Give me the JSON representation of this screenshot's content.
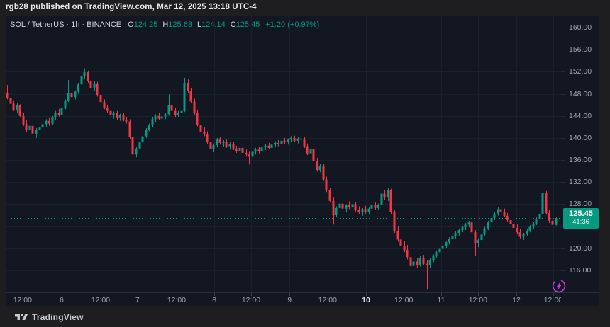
{
  "top_bar": {
    "text": "rgb28 published on TradingView.com, Mar 12, 2025 13:18 UTC-4"
  },
  "legend": {
    "series": "SOL / TetherUS · 1h · BINANCE",
    "ohlc": [
      {
        "label": "O",
        "value": "124.25"
      },
      {
        "label": "H",
        "value": "125.63"
      },
      {
        "label": "L",
        "value": "124.14"
      },
      {
        "label": "C",
        "value": "125.45"
      }
    ],
    "change": "+1.20 (+0.97%)"
  },
  "footer": {
    "brand": "TradingView"
  },
  "boost_icon": "lightning-circle",
  "chart_data": {
    "type": "candlestick",
    "symbol": "SOL/USDT",
    "exchange": "BINANCE",
    "interval": "1h",
    "colors": {
      "up": "#089981",
      "down": "#f23645",
      "grid": "#1b2030",
      "axis_text": "#a0a3ad",
      "bold_text": "#d8dadf",
      "border": "#2a2e39",
      "tag_bg": "#089981",
      "boost": "#c83cd0",
      "background": "#131722"
    },
    "price_axis": {
      "labels": [
        {
          "value": 160,
          "label": "160.00"
        },
        {
          "value": 156,
          "label": "156.00"
        },
        {
          "value": 152,
          "label": "152.00"
        },
        {
          "value": 148,
          "label": "148.00"
        },
        {
          "value": 144,
          "label": "144.00"
        },
        {
          "value": 140,
          "label": "140.00"
        },
        {
          "value": 136,
          "label": "136.00"
        },
        {
          "value": 132,
          "label": "132.00"
        },
        {
          "value": 128,
          "label": "128.00"
        },
        {
          "value": 120,
          "label": "120.00"
        },
        {
          "value": 116,
          "label": "116.00"
        }
      ],
      "grid": [
        160,
        156,
        152,
        148,
        144,
        140,
        136,
        132,
        128,
        124,
        120,
        116
      ],
      "range": [
        112,
        161
      ]
    },
    "time_axis": {
      "ticks": [
        {
          "i": 4.8,
          "label": "12:00",
          "bold": false
        },
        {
          "i": 16.9,
          "label": "6",
          "bold": false
        },
        {
          "i": 29.0,
          "label": "12:00",
          "bold": false
        },
        {
          "i": 40.4,
          "label": "7",
          "bold": false
        },
        {
          "i": 52.5,
          "label": "12:00",
          "bold": false
        },
        {
          "i": 64.2,
          "label": "8",
          "bold": false
        },
        {
          "i": 75.6,
          "label": "12:00",
          "bold": false
        },
        {
          "i": 87.5,
          "label": "9",
          "bold": false
        },
        {
          "i": 99.3,
          "label": "12:00",
          "bold": false
        },
        {
          "i": 111.2,
          "label": "10",
          "bold": true
        },
        {
          "i": 122.9,
          "label": "12:00",
          "bold": false
        },
        {
          "i": 134.5,
          "label": "11",
          "bold": false
        },
        {
          "i": 145.9,
          "label": "12:00",
          "bold": false
        },
        {
          "i": 157.8,
          "label": "12",
          "bold": false
        },
        {
          "i": 169.2,
          "label": "12:00",
          "bold": false
        }
      ]
    },
    "last_price": {
      "value": 125.45,
      "label": "125.45",
      "countdown": "41:36"
    },
    "candles": [
      [
        148.2,
        149.6,
        147.0,
        147.3
      ],
      [
        147.3,
        148.0,
        146.0,
        146.2
      ],
      [
        146.2,
        146.8,
        144.9,
        145.1
      ],
      [
        145.1,
        146.3,
        144.5,
        145.9
      ],
      [
        145.9,
        146.1,
        143.8,
        144.0
      ],
      [
        144.0,
        144.6,
        142.2,
        142.5
      ],
      [
        142.5,
        143.2,
        141.0,
        141.4
      ],
      [
        141.4,
        142.6,
        140.4,
        142.2
      ],
      [
        142.2,
        142.4,
        140.2,
        140.8
      ],
      [
        140.8,
        141.8,
        140.0,
        141.5
      ],
      [
        141.5,
        142.2,
        140.9,
        141.9
      ],
      [
        141.9,
        142.8,
        141.3,
        142.5
      ],
      [
        142.5,
        143.4,
        142.0,
        143.1
      ],
      [
        143.1,
        143.6,
        142.2,
        142.6
      ],
      [
        142.6,
        144.0,
        142.4,
        143.8
      ],
      [
        143.8,
        144.9,
        143.3,
        144.6
      ],
      [
        144.6,
        145.3,
        143.9,
        144.2
      ],
      [
        144.2,
        145.8,
        144.0,
        145.5
      ],
      [
        145.5,
        147.0,
        145.2,
        146.8
      ],
      [
        146.8,
        150.5,
        146.5,
        148.2
      ],
      [
        148.2,
        149.0,
        147.0,
        147.4
      ],
      [
        147.4,
        148.6,
        147.0,
        148.4
      ],
      [
        148.4,
        150.0,
        148.0,
        149.7
      ],
      [
        149.7,
        151.6,
        149.3,
        151.2
      ],
      [
        151.2,
        152.6,
        150.6,
        151.9
      ],
      [
        151.9,
        152.2,
        150.0,
        150.3
      ],
      [
        150.3,
        150.8,
        148.8,
        149.1
      ],
      [
        149.1,
        150.3,
        148.6,
        149.9
      ],
      [
        149.9,
        150.2,
        147.5,
        147.8
      ],
      [
        147.8,
        148.2,
        146.2,
        146.5
      ],
      [
        146.5,
        147.0,
        145.2,
        145.5
      ],
      [
        145.5,
        146.0,
        144.6,
        144.9
      ],
      [
        144.9,
        145.4,
        143.9,
        144.2
      ],
      [
        144.2,
        144.8,
        143.5,
        144.5
      ],
      [
        144.5,
        144.9,
        143.3,
        143.6
      ],
      [
        143.6,
        144.4,
        143.1,
        144.1
      ],
      [
        144.1,
        144.5,
        143.0,
        143.3
      ],
      [
        143.3,
        143.8,
        142.6,
        143.0
      ],
      [
        143.0,
        143.4,
        139.8,
        140.2
      ],
      [
        140.2,
        140.8,
        136.1,
        137.0
      ],
      [
        137.0,
        138.4,
        136.5,
        138.1
      ],
      [
        138.1,
        139.5,
        137.8,
        139.2
      ],
      [
        139.2,
        140.6,
        139.0,
        140.3
      ],
      [
        140.3,
        141.8,
        140.0,
        141.5
      ],
      [
        141.5,
        142.6,
        141.2,
        142.3
      ],
      [
        142.3,
        143.7,
        142.0,
        143.4
      ],
      [
        143.4,
        144.3,
        142.8,
        144.0
      ],
      [
        144.0,
        144.5,
        143.2,
        143.5
      ],
      [
        143.5,
        144.2,
        142.9,
        143.9
      ],
      [
        143.9,
        144.6,
        143.4,
        144.3
      ],
      [
        144.3,
        147.9,
        144.0,
        145.9
      ],
      [
        145.9,
        146.3,
        144.6,
        144.9
      ],
      [
        144.9,
        145.4,
        143.8,
        144.1
      ],
      [
        144.1,
        144.9,
        143.7,
        144.6
      ],
      [
        144.6,
        145.2,
        144.0,
        144.9
      ],
      [
        144.9,
        150.9,
        144.7,
        150.0
      ],
      [
        150.0,
        150.6,
        148.2,
        148.5
      ],
      [
        148.5,
        149.0,
        146.3,
        146.6
      ],
      [
        146.6,
        147.1,
        144.2,
        144.5
      ],
      [
        144.5,
        145.0,
        142.1,
        142.4
      ],
      [
        142.4,
        142.9,
        140.8,
        141.1
      ],
      [
        141.1,
        141.9,
        140.3,
        140.7
      ],
      [
        140.7,
        141.2,
        138.9,
        139.2
      ],
      [
        139.2,
        139.8,
        137.6,
        138.0
      ],
      [
        138.0,
        139.0,
        137.4,
        138.7
      ],
      [
        138.7,
        140.0,
        138.3,
        139.7
      ],
      [
        139.7,
        140.1,
        138.8,
        139.1
      ],
      [
        139.1,
        139.6,
        138.4,
        139.3
      ],
      [
        139.3,
        139.7,
        138.2,
        138.5
      ],
      [
        138.5,
        139.2,
        137.9,
        138.9
      ],
      [
        138.9,
        139.3,
        137.8,
        138.1
      ],
      [
        138.1,
        138.6,
        137.3,
        137.6
      ],
      [
        137.6,
        138.4,
        137.1,
        138.2
      ],
      [
        138.2,
        138.6,
        137.0,
        137.3
      ],
      [
        137.3,
        137.9,
        136.6,
        137.0
      ],
      [
        137.0,
        137.5,
        135.2,
        136.6
      ],
      [
        136.6,
        137.8,
        136.3,
        137.5
      ],
      [
        137.5,
        138.2,
        137.0,
        137.9
      ],
      [
        137.9,
        138.4,
        137.2,
        137.6
      ],
      [
        137.6,
        138.5,
        137.3,
        138.3
      ],
      [
        138.3,
        138.9,
        137.8,
        138.6
      ],
      [
        138.6,
        139.1,
        137.9,
        138.2
      ],
      [
        138.2,
        139.0,
        137.8,
        138.8
      ],
      [
        138.8,
        139.4,
        138.3,
        139.1
      ],
      [
        139.1,
        139.6,
        138.5,
        138.9
      ],
      [
        138.9,
        139.8,
        138.6,
        139.5
      ],
      [
        139.5,
        140.0,
        138.9,
        139.2
      ],
      [
        139.2,
        139.9,
        138.8,
        139.7
      ],
      [
        139.7,
        140.3,
        139.3,
        140.0
      ],
      [
        140.0,
        140.4,
        139.2,
        139.5
      ],
      [
        139.5,
        140.2,
        139.0,
        139.9
      ],
      [
        139.9,
        140.3,
        139.4,
        139.7
      ],
      [
        139.7,
        140.2,
        138.2,
        138.5
      ],
      [
        138.5,
        139.0,
        136.9,
        137.2
      ],
      [
        137.2,
        138.3,
        136.8,
        138.0
      ],
      [
        138.0,
        138.3,
        135.5,
        135.8
      ],
      [
        135.8,
        136.4,
        133.9,
        134.2
      ],
      [
        134.2,
        135.3,
        133.8,
        135.0
      ],
      [
        135.0,
        135.3,
        132.2,
        132.5
      ],
      [
        132.5,
        133.0,
        130.2,
        130.5
      ],
      [
        130.5,
        131.0,
        128.3,
        128.6
      ],
      [
        128.6,
        129.2,
        124.3,
        126.0
      ],
      [
        126.0,
        127.6,
        125.6,
        127.3
      ],
      [
        127.3,
        128.4,
        126.8,
        128.1
      ],
      [
        128.1,
        128.6,
        126.9,
        127.2
      ],
      [
        127.2,
        128.0,
        126.5,
        127.8
      ],
      [
        127.8,
        128.5,
        127.1,
        127.4
      ],
      [
        127.4,
        128.2,
        126.8,
        128.0
      ],
      [
        128.0,
        128.4,
        126.7,
        127.0
      ],
      [
        127.0,
        127.6,
        126.2,
        126.5
      ],
      [
        126.5,
        127.3,
        125.9,
        127.1
      ],
      [
        127.1,
        127.7,
        126.3,
        126.6
      ],
      [
        126.6,
        127.4,
        126.1,
        127.2
      ],
      [
        127.2,
        128.0,
        126.7,
        127.8
      ],
      [
        127.8,
        128.3,
        127.0,
        127.3
      ],
      [
        127.3,
        128.1,
        126.9,
        127.9
      ],
      [
        127.9,
        131.3,
        127.6,
        129.9
      ],
      [
        129.9,
        130.6,
        128.8,
        129.2
      ],
      [
        129.2,
        130.9,
        128.6,
        130.5
      ],
      [
        130.5,
        130.8,
        126.2,
        126.6
      ],
      [
        126.6,
        127.0,
        122.8,
        123.2
      ],
      [
        123.2,
        124.0,
        121.2,
        121.6
      ],
      [
        121.6,
        122.5,
        120.0,
        120.4
      ],
      [
        120.4,
        121.3,
        119.3,
        119.7
      ],
      [
        119.7,
        120.6,
        118.0,
        118.4
      ],
      [
        118.4,
        119.2,
        116.4,
        116.8
      ],
      [
        116.8,
        118.0,
        114.9,
        117.6
      ],
      [
        117.6,
        118.3,
        116.5,
        117.0
      ],
      [
        117.0,
        118.6,
        116.7,
        118.3
      ],
      [
        118.3,
        118.8,
        116.9,
        117.2
      ],
      [
        117.2,
        117.8,
        112.5,
        116.9
      ],
      [
        116.9,
        118.2,
        116.5,
        117.9
      ],
      [
        117.9,
        118.9,
        117.5,
        118.6
      ],
      [
        118.6,
        119.6,
        118.2,
        119.3
      ],
      [
        119.3,
        120.2,
        118.9,
        119.9
      ],
      [
        119.9,
        120.8,
        119.5,
        120.5
      ],
      [
        120.5,
        121.4,
        120.1,
        121.1
      ],
      [
        121.1,
        122.0,
        120.7,
        121.7
      ],
      [
        121.7,
        122.5,
        121.2,
        122.2
      ],
      [
        122.2,
        123.1,
        121.8,
        122.8
      ],
      [
        122.8,
        123.6,
        122.3,
        123.3
      ],
      [
        123.3,
        124.1,
        122.9,
        123.8
      ],
      [
        123.8,
        124.6,
        123.3,
        124.3
      ],
      [
        124.3,
        125.0,
        123.8,
        124.7
      ],
      [
        124.7,
        125.1,
        122.6,
        122.9
      ],
      [
        122.9,
        123.3,
        118.6,
        120.9
      ],
      [
        120.9,
        121.8,
        120.2,
        121.5
      ],
      [
        121.5,
        122.8,
        121.1,
        122.5
      ],
      [
        122.5,
        123.9,
        122.2,
        123.6
      ],
      [
        123.6,
        125.0,
        123.3,
        124.7
      ],
      [
        124.7,
        125.8,
        124.3,
        125.5
      ],
      [
        125.5,
        126.6,
        125.1,
        126.3
      ],
      [
        126.3,
        127.4,
        125.9,
        127.1
      ],
      [
        127.1,
        127.8,
        126.3,
        126.6
      ],
      [
        126.6,
        127.2,
        125.6,
        125.9
      ],
      [
        125.9,
        126.4,
        124.8,
        125.1
      ],
      [
        125.1,
        125.7,
        124.1,
        124.4
      ],
      [
        124.4,
        125.0,
        123.4,
        123.7
      ],
      [
        123.7,
        124.3,
        122.6,
        122.9
      ],
      [
        122.9,
        123.5,
        121.8,
        122.1
      ],
      [
        122.1,
        122.8,
        121.5,
        122.6
      ],
      [
        122.6,
        123.5,
        122.2,
        123.2
      ],
      [
        123.2,
        124.2,
        122.9,
        123.9
      ],
      [
        123.9,
        124.8,
        123.5,
        124.5
      ],
      [
        124.5,
        125.6,
        124.2,
        125.3
      ],
      [
        125.3,
        126.5,
        125.0,
        126.2
      ],
      [
        126.2,
        131.2,
        126.0,
        130.0
      ],
      [
        130.0,
        130.4,
        126.1,
        126.4
      ],
      [
        126.4,
        126.9,
        124.6,
        125.0
      ],
      [
        125.0,
        125.7,
        123.7,
        124.25
      ],
      [
        124.25,
        125.63,
        124.14,
        125.45
      ]
    ]
  }
}
